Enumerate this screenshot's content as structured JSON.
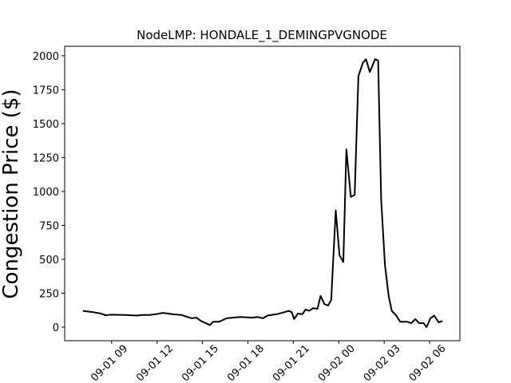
{
  "chart_data": {
    "type": "line",
    "title": "NodeLMP: HONDALE_1_DEMINGPVGNODE",
    "y_label": "Congestion Price ($)",
    "x": [
      7.1,
      7.8,
      8.3,
      8.6,
      9,
      9.9,
      10.7,
      11,
      11.5,
      11.9,
      12.4,
      13,
      13.6,
      14,
      14.3,
      14.6,
      14.9,
      15.5,
      15.7,
      16.1,
      16.6,
      17.5,
      18.3,
      18.6,
      19,
      19.3,
      19.9,
      20.4,
      20.7,
      20.9,
      21.05,
      21.3,
      21.6,
      21.8,
      22.05,
      22.3,
      22.6,
      22.8,
      23.05,
      23.3,
      23.5,
      23.8,
      24.05,
      24.3,
      24.5,
      24.8,
      25.05,
      25.3,
      25.6,
      25.8,
      26.05,
      26.4,
      26.6,
      26.8,
      27.05,
      27.3,
      27.5,
      27.8,
      28.05,
      28.5,
      28.8,
      29.05,
      29.3,
      29.6,
      29.8,
      30.05,
      30.3,
      30.6,
      30.85
    ],
    "series": [
      {
        "color": "#000000",
        "values": [
          120,
          110,
          100,
          88,
          92,
          90,
          85,
          90,
          90,
          95,
          105,
          95,
          90,
          75,
          65,
          70,
          45,
          15,
          40,
          40,
          65,
          75,
          70,
          75,
          65,
          85,
          95,
          110,
          120,
          110,
          60,
          100,
          95,
          130,
          120,
          140,
          135,
          230,
          170,
          160,
          200,
          860,
          530,
          480,
          1310,
          960,
          975,
          1850,
          1950,
          1975,
          1880,
          1975,
          1965,
          940,
          460,
          225,
          120,
          85,
          40,
          40,
          30,
          60,
          30,
          30,
          0,
          65,
          85,
          35,
          45
        ]
      }
    ],
    "xlim": [
      5.9,
      32.0
    ],
    "ylim": [
      -100,
      2070
    ],
    "xticks": [
      {
        "value": 9,
        "label": "09-01 09"
      },
      {
        "value": 12,
        "label": "09-01 12"
      },
      {
        "value": 15,
        "label": "09-01 15"
      },
      {
        "value": 18,
        "label": "09-01 18"
      },
      {
        "value": 21,
        "label": "09-01 21"
      },
      {
        "value": 24,
        "label": "09-02 00"
      },
      {
        "value": 27,
        "label": "09-02 03"
      },
      {
        "value": 30,
        "label": "09-02 06"
      }
    ],
    "yticks": [
      0,
      250,
      500,
      750,
      1000,
      1250,
      1500,
      1750,
      2000
    ]
  }
}
